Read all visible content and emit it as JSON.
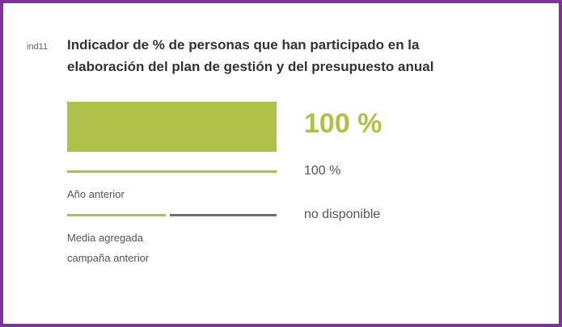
{
  "indicator": {
    "code": "ind11",
    "title": "Indicador de % de personas que han participado en la elaboración del plan de gestión y del presupuesto anual",
    "xlim": [
      0,
      100
    ],
    "value": 100,
    "value_label": "100 %",
    "previous_year": {
      "label": "Año anterior",
      "value": 100,
      "value_label": "100 %"
    },
    "average": {
      "label": "Media agregada campaña anterior",
      "value_text": "no disponible"
    }
  }
}
